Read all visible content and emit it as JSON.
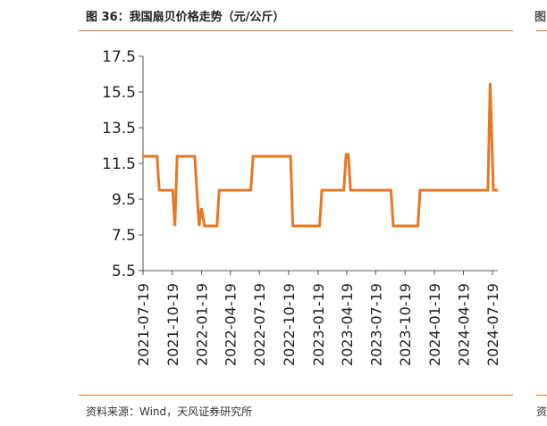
{
  "header": {
    "title": "图 36：我国扇贝价格走势（元/公斤）",
    "edge_fragment": "图"
  },
  "footer": {
    "source": "资料来源：Wind，天风证券研究所",
    "edge_fragment": "资"
  },
  "chart_data": {
    "type": "line",
    "title": "图 36：我国扇贝价格走势（元/公斤）",
    "xlabel": "",
    "ylabel": "",
    "ylim": [
      5.5,
      17.5
    ],
    "y_ticks": [
      5.5,
      7.5,
      9.5,
      11.5,
      13.5,
      15.5,
      17.5
    ],
    "x_range": [
      "2021-07-19",
      "2024-08-05"
    ],
    "x_ticks": [
      "2021-07-19",
      "2021-10-19",
      "2022-01-19",
      "2022-04-19",
      "2022-07-19",
      "2022-10-19",
      "2023-01-19",
      "2023-04-19",
      "2023-07-19",
      "2023-10-19",
      "2024-01-19",
      "2024-04-19",
      "2024-07-19"
    ],
    "grid": false,
    "color": "#e87722",
    "series": [
      {
        "name": "",
        "x": [
          "2021-07-19",
          "2021-09-01",
          "2021-09-08",
          "2021-10-20",
          "2021-10-27",
          "2021-11-03",
          "2021-12-28",
          "2022-01-11",
          "2022-01-18",
          "2022-01-28",
          "2022-02-04",
          "2022-02-11",
          "2022-03-08",
          "2022-03-15",
          "2022-06-22",
          "2022-06-29",
          "2022-10-25",
          "2022-11-01",
          "2023-01-24",
          "2023-01-31",
          "2023-04-10",
          "2023-04-17",
          "2023-04-24",
          "2023-05-01",
          "2023-09-05",
          "2023-09-12",
          "2023-11-28",
          "2023-12-05",
          "2024-07-05",
          "2024-07-12",
          "2024-07-22",
          "2024-08-05"
        ],
        "values": [
          11.9,
          11.9,
          10.0,
          10.0,
          8.0,
          11.9,
          11.9,
          8.0,
          9.0,
          8.0,
          8.0,
          8.0,
          8.0,
          10.0,
          10.0,
          11.9,
          11.9,
          8.0,
          8.0,
          10.0,
          10.0,
          12.0,
          12.0,
          10.0,
          10.0,
          8.0,
          8.0,
          10.0,
          10.0,
          16.0,
          10.0,
          10.0
        ]
      }
    ]
  }
}
